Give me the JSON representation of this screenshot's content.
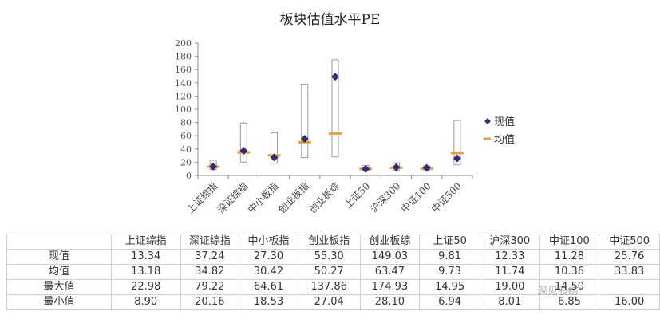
{
  "title": "板块估值水平PE",
  "legend": [
    {
      "label": "现值",
      "marker": "diamond",
      "color": "#3b2a7a"
    },
    {
      "label": "均值",
      "marker": "dash",
      "color": "#e8a033"
    }
  ],
  "chart_data": {
    "type": "scatter",
    "title": "板块估值水平PE",
    "xlabel": "",
    "ylabel": "",
    "ylim": [
      0,
      200
    ],
    "yticks": [
      0,
      20,
      40,
      60,
      80,
      100,
      120,
      140,
      160,
      180,
      200
    ],
    "categories": [
      "上证综指",
      "深证综指",
      "中小板指",
      "创业板指",
      "创业板综",
      "上证50",
      "沪深300",
      "中证100",
      "中证500"
    ],
    "series": [
      {
        "name": "现值",
        "values": [
          13.34,
          37.24,
          27.3,
          55.3,
          149.03,
          9.81,
          12.33,
          11.28,
          25.76
        ]
      },
      {
        "name": "均值",
        "values": [
          13.18,
          34.82,
          30.42,
          50.27,
          63.47,
          9.73,
          11.74,
          10.36,
          33.83
        ]
      },
      {
        "name": "最大值",
        "values": [
          22.98,
          79.22,
          64.61,
          137.86,
          174.93,
          14.95,
          19.0,
          14.5,
          83.0
        ]
      },
      {
        "name": "最小值",
        "values": [
          8.9,
          20.16,
          18.53,
          27.04,
          28.1,
          6.94,
          8.01,
          6.85,
          16.0
        ]
      }
    ],
    "grid": false,
    "legend_position": "right"
  },
  "table": {
    "columns": [
      "",
      "上证综指",
      "深证综指",
      "中小板指",
      "创业板指",
      "创业板综",
      "上证50",
      "沪深300",
      "中证100",
      "中证500"
    ],
    "rows": [
      {
        "label": "现值",
        "values": [
          "13.34",
          "37.24",
          "27.30",
          "55.30",
          "149.03",
          "9.81",
          "12.33",
          "11.28",
          "25.76"
        ]
      },
      {
        "label": "均值",
        "values": [
          "13.18",
          "34.82",
          "30.42",
          "50.27",
          "63.47",
          "9.73",
          "11.74",
          "10.36",
          "33.83"
        ]
      },
      {
        "label": "最大值",
        "values": [
          "22.98",
          "79.22",
          "64.61",
          "137.86",
          "174.93",
          "14.95",
          "19.00",
          "14.50",
          ""
        ]
      },
      {
        "label": "最小值",
        "values": [
          "8.90",
          "20.16",
          "18.53",
          "27.04",
          "28.10",
          "6.94",
          "8.01",
          "6.85",
          "16.00"
        ]
      }
    ]
  },
  "watermark": "深见股纺"
}
